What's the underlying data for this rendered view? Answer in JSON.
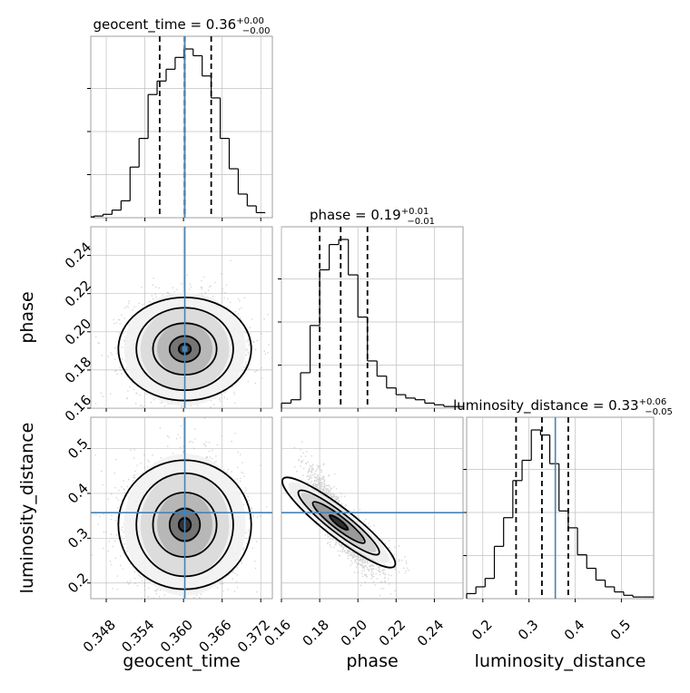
{
  "chart_data": {
    "type": "corner",
    "parameters": [
      "geocent_time",
      "phase",
      "luminosity_distance"
    ],
    "colors": {
      "truth": "#4682b4",
      "histogram": "#000000",
      "contour": "#000000",
      "scatter": "#8c8c8c",
      "grid": "#c0c0c0"
    },
    "grid": true,
    "titles": [
      {
        "param": "geocent_time",
        "prefix": "geocent_time = 0.36",
        "plus": "+0.00",
        "minus": "−0.00"
      },
      {
        "param": "phase",
        "prefix": "phase = 0.19",
        "plus": "+0.01",
        "minus": "−0.01"
      },
      {
        "param": "luminosity_distance",
        "prefix": "luminosity_distance = 0.33",
        "plus": "+0.06",
        "minus": "−0.05"
      }
    ],
    "axes": {
      "geocent_time": {
        "label": "geocent_time",
        "range": [
          0.3456,
          0.3738
        ],
        "ticks": [
          0.348,
          0.354,
          0.36,
          0.366,
          0.372
        ],
        "tick_labels": [
          "0.348",
          "0.354",
          "0.360",
          "0.366",
          "0.372"
        ]
      },
      "phase": {
        "label": "phase",
        "range": [
          0.16,
          0.255
        ],
        "ticks": [
          0.16,
          0.18,
          0.2,
          0.22,
          0.24
        ],
        "tick_labels": [
          "0.16",
          "0.18",
          "0.20",
          "0.22",
          "0.24"
        ]
      },
      "luminosity_distance": {
        "label": "luminosity_distance",
        "range": [
          0.165,
          0.57
        ],
        "ticks": [
          0.2,
          0.3,
          0.4,
          0.5
        ],
        "tick_labels": [
          "0.2",
          "0.3",
          "0.4",
          "0.5"
        ]
      }
    },
    "truths": {
      "geocent_time": 0.3602,
      "luminosity_distance": 0.357
    },
    "quantiles": {
      "geocent_time": [
        0.3563,
        0.3602,
        0.3643
      ],
      "phase": [
        0.18,
        0.191,
        0.205
      ],
      "luminosity_distance": [
        0.272,
        0.328,
        0.385
      ]
    },
    "histograms": {
      "geocent_time": {
        "edges": [
          0.3461,
          0.3475,
          0.3489,
          0.3503,
          0.3517,
          0.3531,
          0.3545,
          0.3559,
          0.3573,
          0.3587,
          0.3601,
          0.3615,
          0.3629,
          0.3643,
          0.3657,
          0.3671,
          0.3685,
          0.3699,
          0.3713,
          0.3727
        ],
        "counts": [
          0.01,
          0.02,
          0.045,
          0.1,
          0.3,
          0.47,
          0.73,
          0.81,
          0.88,
          0.95,
          1.0,
          0.96,
          0.84,
          0.71,
          0.47,
          0.29,
          0.14,
          0.07,
          0.03
        ]
      },
      "phase": {
        "edges": [
          0.16,
          0.165,
          0.17,
          0.175,
          0.18,
          0.185,
          0.19,
          0.195,
          0.2,
          0.205,
          0.21,
          0.215,
          0.22,
          0.225,
          0.23,
          0.235,
          0.24,
          0.245,
          0.25,
          0.255
        ],
        "counts": [
          0.03,
          0.05,
          0.21,
          0.49,
          0.82,
          0.97,
          1.0,
          0.79,
          0.54,
          0.28,
          0.19,
          0.12,
          0.08,
          0.06,
          0.05,
          0.03,
          0.02,
          0.01,
          0.01
        ]
      },
      "luminosity_distance": {
        "edges": [
          0.165,
          0.185,
          0.205,
          0.225,
          0.245,
          0.265,
          0.285,
          0.305,
          0.325,
          0.345,
          0.365,
          0.385,
          0.405,
          0.425,
          0.445,
          0.465,
          0.485,
          0.505,
          0.525,
          0.545,
          0.57
        ],
        "counts": [
          0.03,
          0.07,
          0.12,
          0.31,
          0.48,
          0.7,
          0.82,
          1.0,
          0.97,
          0.8,
          0.52,
          0.42,
          0.26,
          0.18,
          0.11,
          0.07,
          0.04,
          0.02,
          0.01,
          0.01
        ]
      }
    },
    "correlations": {
      "phase|geocent_time": 0.0,
      "luminosity_distance|geocent_time": 0.0,
      "luminosity_distance|phase": -0.93
    },
    "scatter_spread": {
      "geocent_time": 0.0043,
      "phase": 0.0135,
      "luminosity_distance": 0.072
    },
    "centers": {
      "geocent_time": 0.3602,
      "phase": 0.191,
      "luminosity_distance": 0.33
    }
  }
}
